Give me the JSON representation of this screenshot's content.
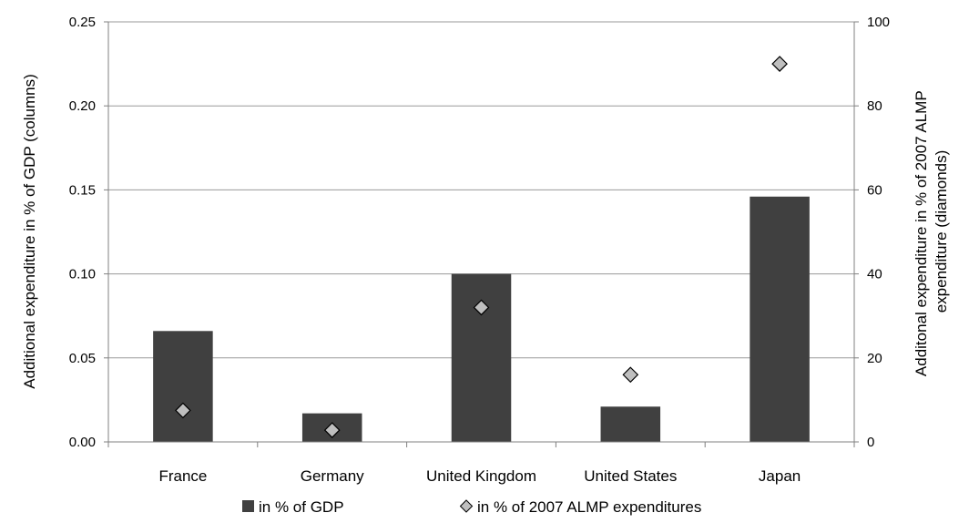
{
  "chart_data": {
    "type": "bar",
    "categories": [
      "France",
      "Germany",
      "United Kingdom",
      "United States",
      "Japan"
    ],
    "series": [
      {
        "name": "in % of GDP",
        "axis": "left",
        "mark": "column",
        "color": "#404040",
        "values": [
          0.066,
          0.017,
          0.1,
          0.021,
          0.146
        ]
      },
      {
        "name": "in % of 2007 ALMP expenditures",
        "axis": "right",
        "mark": "diamond",
        "color": "#bfbfbf",
        "values": [
          7.5,
          2.8,
          32.0,
          16.0,
          90.0
        ]
      }
    ],
    "y_left": {
      "label": "Additional expenditure in % of GDP (columns)",
      "ylim": [
        0,
        0.25
      ],
      "ticks": [
        "0.00",
        "0.05",
        "0.10",
        "0.15",
        "0.20",
        "0.25"
      ]
    },
    "y_right": {
      "label_lines": [
        "Additonal expenditure in % of 2007 ALMP",
        "expenditure (diamonds)"
      ],
      "ylim": [
        0,
        100
      ],
      "ticks": [
        "0",
        "20",
        "40",
        "60",
        "80",
        "100"
      ]
    },
    "grid": true,
    "legend": {
      "position": "bottom",
      "items": [
        {
          "label": "in % of GDP",
          "symbol": "square",
          "color": "#404040"
        },
        {
          "label": "in % of 2007 ALMP expenditures",
          "symbol": "diamond",
          "color": "#bfbfbf"
        }
      ]
    }
  }
}
